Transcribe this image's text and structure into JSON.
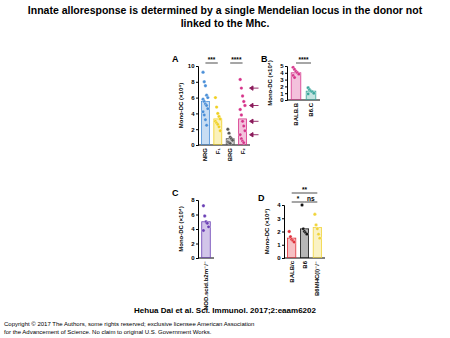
{
  "title": "Innate alloresponse is determined by a single Mendelian locus in the donor not linked to the Mhc.",
  "citation": "Hehua Dai et al. Sci. Immunol. 2017;2:eaam6202",
  "copyright": [
    "Copyright © 2017 The Authors, some rights reserved; exclusive licensee American Association",
    "for the Advancement of Science. No claim to original U.S. Government Works."
  ],
  "chart_data": [
    {
      "type": "bar",
      "title": "A",
      "y_label": "Mono-DC (×10⁴)",
      "categories": [
        "NRG",
        "F₁",
        "BRG",
        "F₂"
      ],
      "values": [
        5.5,
        3.3,
        0.8,
        3.3
      ],
      "colors": [
        "#4a8fd8",
        "#f0d020",
        "#555555",
        "#d6338a"
      ],
      "points": [
        [
          9.2,
          8.0,
          7.5,
          6.3,
          6.0,
          5.8,
          5.5,
          5.2,
          5.0,
          4.6,
          4.2,
          3.8,
          3.2,
          2.5
        ],
        [
          6.0,
          4.8,
          4.0,
          3.6,
          3.3,
          3.0,
          2.8,
          2.6,
          2.3,
          1.8
        ],
        [
          2.0,
          1.5,
          1.0,
          0.8,
          0.6,
          0.4,
          0.3,
          0.2
        ],
        [
          8.3,
          7.2,
          6.2,
          5.5,
          5.0,
          4.5,
          3.8,
          3.0,
          2.4,
          1.8,
          1.3,
          0.8,
          0.5,
          0.3
        ]
      ],
      "arrows": [
        7.2,
        5.0,
        3.0,
        1.3
      ],
      "significance": [
        {
          "from": "NRG",
          "to": "F₁",
          "label": "***"
        },
        {
          "from": "BRG",
          "to": "F₂",
          "label": "****"
        }
      ],
      "ylim": [
        0,
        10
      ],
      "yticks": [
        0,
        2,
        4,
        6,
        8,
        10
      ]
    },
    {
      "type": "bar",
      "title": "B",
      "y_label": "Mono-DC (×10⁴)",
      "categories": [
        "BALB.B",
        "B6.C"
      ],
      "values": [
        4.0,
        1.3
      ],
      "colors": [
        "#d6338a",
        "#3aa69c"
      ],
      "points": [
        [
          4.8,
          4.5,
          4.2,
          4.0,
          3.8,
          3.6,
          3.3
        ],
        [
          1.8,
          1.5,
          1.3,
          1.2,
          1.0,
          0.9
        ]
      ],
      "significance": [
        {
          "from": "BALB.B",
          "to": "B6.C",
          "label": "****"
        }
      ],
      "ylim": [
        0,
        5
      ],
      "yticks": [
        0,
        1,
        2,
        3,
        4,
        5
      ]
    },
    {
      "type": "bar",
      "title": "C",
      "y_label": "Mono-DC (×10⁴)",
      "categories": [
        "NOD.scid.b2m⁻/⁻"
      ],
      "values": [
        5.0
      ],
      "colors": [
        "#6a3fb5"
      ],
      "points": [
        [
          7.2,
          5.8,
          5.0,
          4.8,
          4.3,
          3.8
        ]
      ],
      "ylim": [
        0,
        8
      ],
      "yticks": [
        0,
        2,
        4,
        6,
        8
      ]
    },
    {
      "type": "bar",
      "title": "D",
      "y_label": "Mono-DC (×10⁴)",
      "categories": [
        "BALB/c",
        "B6",
        "B6MHC(I)⁻/⁻"
      ],
      "values": [
        1.5,
        2.2,
        2.3
      ],
      "colors": [
        "#e0303a",
        "#111111",
        "#f0d43a"
      ],
      "points": [
        [
          2.0,
          1.6,
          1.4,
          1.3,
          1.2
        ],
        [
          4.0,
          2.2,
          2.0,
          1.9,
          1.8
        ],
        [
          3.3,
          2.5,
          2.2,
          1.8,
          1.5
        ]
      ],
      "significance": [
        {
          "from": "BALB/c",
          "to": "B6MHC(I)⁻/⁻",
          "label": "**"
        },
        {
          "from": "BALB/c",
          "to": "B6",
          "label": "*"
        },
        {
          "from": "B6",
          "to": "B6MHC(I)⁻/⁻",
          "label": "ns"
        }
      ],
      "ylim": [
        0,
        4
      ],
      "yticks": [
        0,
        1,
        2,
        3,
        4
      ]
    }
  ]
}
